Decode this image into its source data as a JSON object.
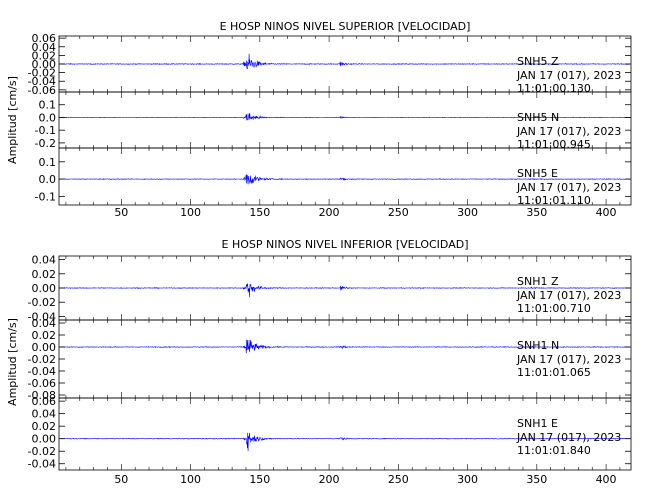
{
  "chart_data": [
    {
      "type": "line",
      "title": "E HOSP NINOS NIVEL SUPERIOR [VELOCIDAD]",
      "ylabel": "Amplitud [cm/s]",
      "xlabel": "",
      "xlim": [
        5,
        418
      ],
      "xticks": [
        50,
        100,
        150,
        200,
        250,
        300,
        350,
        400
      ],
      "grid": false,
      "line_color": "#0000ff",
      "panels": [
        {
          "station": "SNH5",
          "component": "Z",
          "date": "JAN 17 (017), 2023",
          "time": "11:01:00.130",
          "ylim": [
            -0.065,
            0.065
          ],
          "yticks": [
            "0.06",
            "0.04",
            "0.02",
            "0.00",
            "-0.02",
            "-0.04",
            "-0.06"
          ],
          "arrival_s": 140,
          "peak": 0.06,
          "noise": 0.0015,
          "events": [
            {
              "x": 208,
              "amp": 0.012
            },
            {
              "x": 345,
              "amp": 0.003
            }
          ]
        },
        {
          "station": "SNH5",
          "component": "N",
          "date": "JAN 17 (017), 2023",
          "time": "11:01:00.945",
          "ylim": [
            -0.24,
            0.2
          ],
          "yticks": [
            "0.1",
            "0.0",
            "-0.1",
            "-0.2"
          ],
          "arrival_s": 140,
          "peak": 0.11,
          "noise": 0.003,
          "events": [
            {
              "x": 208,
              "amp": 0.015
            },
            {
              "x": 345,
              "amp": 0.006
            }
          ]
        },
        {
          "station": "SNH5",
          "component": "E",
          "date": "JAN 17 (017), 2023",
          "time": "11:01:01.110",
          "ylim": [
            -0.15,
            0.18
          ],
          "yticks": [
            "0.1",
            "0.0",
            "-0.1"
          ],
          "arrival_s": 140,
          "peak": 0.11,
          "noise": 0.003,
          "events": [
            {
              "x": 208,
              "amp": 0.02
            },
            {
              "x": 345,
              "amp": 0.006
            }
          ]
        }
      ]
    },
    {
      "type": "line",
      "title": "E HOSP NINOS NIVEL INFERIOR [VELOCIDAD]",
      "ylabel": "Amplitud [cm/s]",
      "xlabel": "",
      "xlim": [
        5,
        418
      ],
      "xticks": [
        50,
        100,
        150,
        200,
        250,
        300,
        350,
        400
      ],
      "grid": false,
      "line_color": "#0000ff",
      "panels": [
        {
          "station": "SNH1",
          "component": "Z",
          "date": "JAN 17 (017), 2023",
          "time": "11:01:00.710",
          "ylim": [
            -0.045,
            0.045
          ],
          "yticks": [
            "0.04",
            "0.02",
            "0.00",
            "-0.02",
            "-0.04"
          ],
          "arrival_s": 140,
          "peak": 0.03,
          "noise": 0.0008,
          "events": [
            {
              "x": 208,
              "amp": 0.006
            },
            {
              "x": 345,
              "amp": 0.002
            }
          ]
        },
        {
          "station": "SNH1",
          "component": "N",
          "date": "JAN 17 (017), 2023",
          "time": "11:01:01.065",
          "ylim": [
            -0.085,
            0.045
          ],
          "yticks": [
            "0.04",
            "0.02",
            "0.00",
            "-0.02",
            "-0.04",
            "-0.06",
            "-0.08"
          ],
          "arrival_s": 140,
          "peak": 0.04,
          "noise": 0.001,
          "events": [
            {
              "x": 208,
              "amp": 0.007
            },
            {
              "x": 345,
              "amp": 0.002
            }
          ]
        },
        {
          "station": "SNH1",
          "component": "E",
          "date": "JAN 17 (017), 2023",
          "time": "11:01:01.840",
          "ylim": [
            -0.05,
            0.065
          ],
          "yticks": [
            "0.06",
            "0.04",
            "0.02",
            "0.00",
            "-0.02",
            "-0.04"
          ],
          "arrival_s": 140,
          "peak": 0.035,
          "noise": 0.0008,
          "events": [
            {
              "x": 208,
              "amp": 0.005
            },
            {
              "x": 345,
              "amp": 0.002
            }
          ]
        }
      ]
    }
  ]
}
